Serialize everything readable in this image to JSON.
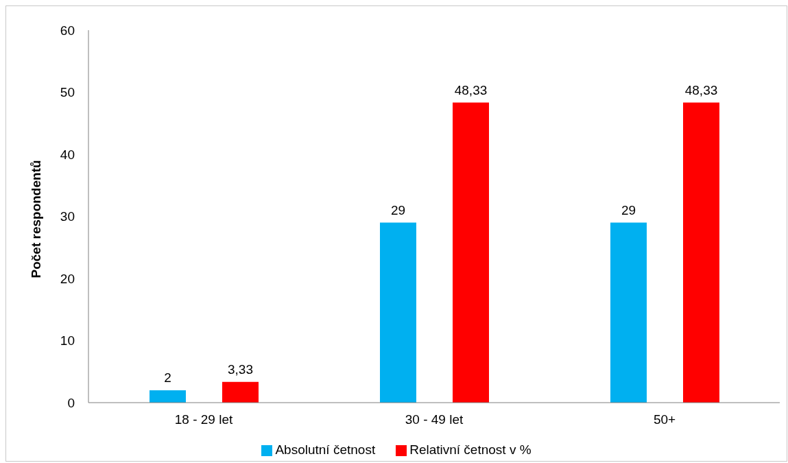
{
  "chart_data": {
    "type": "bar",
    "ylabel": "Počet respondentů",
    "categories": [
      "18 - 29 let",
      "30 - 49 let",
      "50+"
    ],
    "series": [
      {
        "name": "Absolutní četnost",
        "color": "#00b0f0",
        "values": [
          2,
          29,
          29
        ],
        "value_labels": [
          "2",
          "29",
          "29"
        ]
      },
      {
        "name": "Relativní četnost v %",
        "color": "#ff0000",
        "values": [
          3.33,
          48.33,
          48.33
        ],
        "value_labels": [
          "3,33",
          "48,33",
          "48,33"
        ]
      }
    ],
    "ylim": [
      0,
      60
    ],
    "yticks": [
      0,
      10,
      20,
      30,
      40,
      50,
      60
    ],
    "grid": false,
    "legend": "bottom"
  }
}
